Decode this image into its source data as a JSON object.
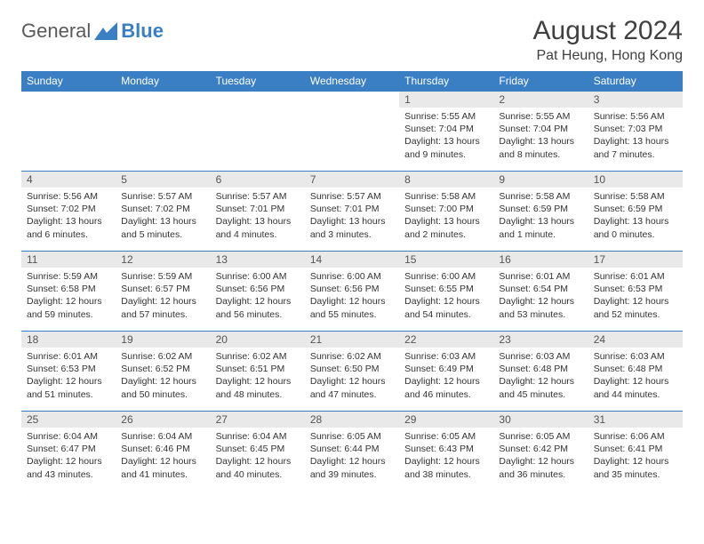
{
  "logo": {
    "text_gray": "General",
    "text_blue": "Blue"
  },
  "header": {
    "title": "August 2024",
    "location": "Pat Heung, Hong Kong"
  },
  "colors": {
    "brand_blue": "#3a7fc4",
    "header_text": "#ffffff",
    "daynum_bg": "#e9e9e9",
    "body_text": "#333333",
    "page_bg": "#ffffff",
    "rule": "#3a7fc4"
  },
  "calendar": {
    "type": "table",
    "day_headers": [
      "Sunday",
      "Monday",
      "Tuesday",
      "Wednesday",
      "Thursday",
      "Friday",
      "Saturday"
    ],
    "header_fontsize": 12,
    "cell_fontsize": 10.5,
    "weeks": [
      [
        null,
        null,
        null,
        null,
        {
          "n": "1",
          "sunrise": "5:55 AM",
          "sunset": "7:04 PM",
          "daylight": "13 hours and 9 minutes."
        },
        {
          "n": "2",
          "sunrise": "5:55 AM",
          "sunset": "7:04 PM",
          "daylight": "13 hours and 8 minutes."
        },
        {
          "n": "3",
          "sunrise": "5:56 AM",
          "sunset": "7:03 PM",
          "daylight": "13 hours and 7 minutes."
        }
      ],
      [
        {
          "n": "4",
          "sunrise": "5:56 AM",
          "sunset": "7:02 PM",
          "daylight": "13 hours and 6 minutes."
        },
        {
          "n": "5",
          "sunrise": "5:57 AM",
          "sunset": "7:02 PM",
          "daylight": "13 hours and 5 minutes."
        },
        {
          "n": "6",
          "sunrise": "5:57 AM",
          "sunset": "7:01 PM",
          "daylight": "13 hours and 4 minutes."
        },
        {
          "n": "7",
          "sunrise": "5:57 AM",
          "sunset": "7:01 PM",
          "daylight": "13 hours and 3 minutes."
        },
        {
          "n": "8",
          "sunrise": "5:58 AM",
          "sunset": "7:00 PM",
          "daylight": "13 hours and 2 minutes."
        },
        {
          "n": "9",
          "sunrise": "5:58 AM",
          "sunset": "6:59 PM",
          "daylight": "13 hours and 1 minute."
        },
        {
          "n": "10",
          "sunrise": "5:58 AM",
          "sunset": "6:59 PM",
          "daylight": "13 hours and 0 minutes."
        }
      ],
      [
        {
          "n": "11",
          "sunrise": "5:59 AM",
          "sunset": "6:58 PM",
          "daylight": "12 hours and 59 minutes."
        },
        {
          "n": "12",
          "sunrise": "5:59 AM",
          "sunset": "6:57 PM",
          "daylight": "12 hours and 57 minutes."
        },
        {
          "n": "13",
          "sunrise": "6:00 AM",
          "sunset": "6:56 PM",
          "daylight": "12 hours and 56 minutes."
        },
        {
          "n": "14",
          "sunrise": "6:00 AM",
          "sunset": "6:56 PM",
          "daylight": "12 hours and 55 minutes."
        },
        {
          "n": "15",
          "sunrise": "6:00 AM",
          "sunset": "6:55 PM",
          "daylight": "12 hours and 54 minutes."
        },
        {
          "n": "16",
          "sunrise": "6:01 AM",
          "sunset": "6:54 PM",
          "daylight": "12 hours and 53 minutes."
        },
        {
          "n": "17",
          "sunrise": "6:01 AM",
          "sunset": "6:53 PM",
          "daylight": "12 hours and 52 minutes."
        }
      ],
      [
        {
          "n": "18",
          "sunrise": "6:01 AM",
          "sunset": "6:53 PM",
          "daylight": "12 hours and 51 minutes."
        },
        {
          "n": "19",
          "sunrise": "6:02 AM",
          "sunset": "6:52 PM",
          "daylight": "12 hours and 50 minutes."
        },
        {
          "n": "20",
          "sunrise": "6:02 AM",
          "sunset": "6:51 PM",
          "daylight": "12 hours and 48 minutes."
        },
        {
          "n": "21",
          "sunrise": "6:02 AM",
          "sunset": "6:50 PM",
          "daylight": "12 hours and 47 minutes."
        },
        {
          "n": "22",
          "sunrise": "6:03 AM",
          "sunset": "6:49 PM",
          "daylight": "12 hours and 46 minutes."
        },
        {
          "n": "23",
          "sunrise": "6:03 AM",
          "sunset": "6:48 PM",
          "daylight": "12 hours and 45 minutes."
        },
        {
          "n": "24",
          "sunrise": "6:03 AM",
          "sunset": "6:48 PM",
          "daylight": "12 hours and 44 minutes."
        }
      ],
      [
        {
          "n": "25",
          "sunrise": "6:04 AM",
          "sunset": "6:47 PM",
          "daylight": "12 hours and 43 minutes."
        },
        {
          "n": "26",
          "sunrise": "6:04 AM",
          "sunset": "6:46 PM",
          "daylight": "12 hours and 41 minutes."
        },
        {
          "n": "27",
          "sunrise": "6:04 AM",
          "sunset": "6:45 PM",
          "daylight": "12 hours and 40 minutes."
        },
        {
          "n": "28",
          "sunrise": "6:05 AM",
          "sunset": "6:44 PM",
          "daylight": "12 hours and 39 minutes."
        },
        {
          "n": "29",
          "sunrise": "6:05 AM",
          "sunset": "6:43 PM",
          "daylight": "12 hours and 38 minutes."
        },
        {
          "n": "30",
          "sunrise": "6:05 AM",
          "sunset": "6:42 PM",
          "daylight": "12 hours and 36 minutes."
        },
        {
          "n": "31",
          "sunrise": "6:06 AM",
          "sunset": "6:41 PM",
          "daylight": "12 hours and 35 minutes."
        }
      ]
    ]
  },
  "labels": {
    "sunrise": "Sunrise:",
    "sunset": "Sunset:",
    "daylight": "Daylight:"
  }
}
